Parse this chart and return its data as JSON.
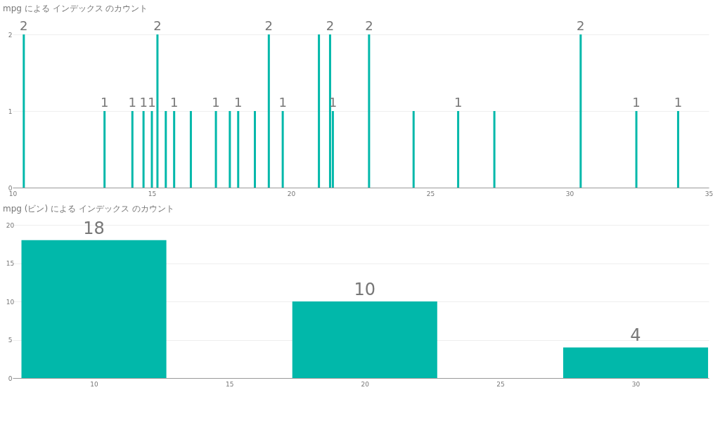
{
  "chart_data": [
    {
      "type": "bar",
      "title": "mpg による インデックス のカウント",
      "x": [
        10.4,
        13.3,
        14.3,
        14.7,
        15.0,
        15.2,
        15.5,
        15.8,
        16.4,
        17.3,
        17.8,
        18.1,
        18.7,
        19.2,
        19.7,
        21.0,
        21.4,
        21.5,
        22.8,
        24.4,
        26.0,
        27.3,
        30.4,
        32.4,
        33.9
      ],
      "series": [
        {
          "color": "#01b8aa",
          "values": [
            2,
            1,
            1,
            1,
            1,
            2,
            1,
            1,
            1,
            1,
            1,
            1,
            1,
            2,
            1,
            2,
            2,
            1,
            2,
            1,
            1,
            1,
            2,
            1,
            1
          ],
          "value_labels": [
            "2",
            "1",
            "1",
            "1",
            "1",
            "2",
            null,
            "1",
            null,
            "1",
            null,
            "1",
            null,
            "2",
            "1",
            null,
            "2",
            "1",
            "2",
            null,
            "1",
            null,
            "2",
            "1",
            "1"
          ]
        }
      ],
      "xlim": [
        10,
        35
      ],
      "xticks": [
        10,
        15,
        20,
        25,
        30,
        35
      ],
      "ylim": [
        0,
        2
      ],
      "yticks": [
        0,
        1,
        2
      ],
      "grid": "y"
    },
    {
      "type": "bar",
      "title": "mpg (ビン) による インデックス のカウント",
      "x": [
        10,
        20,
        30
      ],
      "series": [
        {
          "color": "#01b8aa",
          "values": [
            18,
            10,
            4
          ]
        }
      ],
      "xlim": [
        7,
        32.7
      ],
      "xticks": [
        10,
        15,
        20,
        25,
        30
      ],
      "ylim": [
        0,
        20
      ],
      "yticks": [
        0,
        5,
        10,
        15,
        20
      ],
      "grid": "y",
      "data_labels": true
    }
  ]
}
